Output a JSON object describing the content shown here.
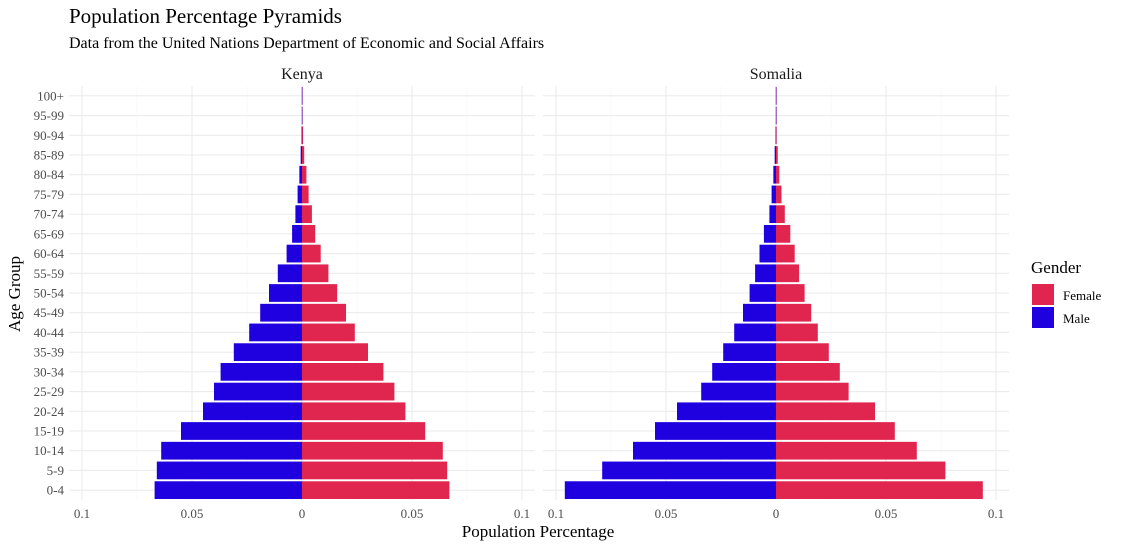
{
  "chart_data": {
    "type": "bar",
    "title": "Population Percentage Pyramids",
    "subtitle": "Data from the United Nations Department of Economic and Social Affairs",
    "xlabel": "Population Percentage",
    "ylabel": "Age Group",
    "xlim": [
      -0.1,
      0.1
    ],
    "x_tick_labels": [
      "0.1",
      "0.05",
      "0",
      "0.05",
      "0.1"
    ],
    "x_tick_values": [
      -0.1,
      -0.05,
      0,
      0.05,
      0.1
    ],
    "grid": true,
    "legend": {
      "title": "Gender",
      "placement": "right",
      "entries": [
        {
          "name": "Female",
          "color": "#E0264F"
        },
        {
          "name": "Male",
          "color": "#1F00DF"
        }
      ]
    },
    "categories": [
      "0-4",
      "5-9",
      "10-14",
      "15-19",
      "20-24",
      "25-29",
      "30-34",
      "35-39",
      "40-44",
      "45-49",
      "50-54",
      "55-59",
      "60-64",
      "65-69",
      "70-74",
      "75-79",
      "80-84",
      "85-89",
      "90-94",
      "95-99",
      "100+"
    ],
    "panels": [
      {
        "name": "Kenya",
        "series": [
          {
            "name": "Female",
            "values": [
              0.067,
              0.066,
              0.064,
              0.056,
              0.047,
              0.042,
              0.037,
              0.03,
              0.024,
              0.02,
              0.016,
              0.012,
              0.0085,
              0.006,
              0.0045,
              0.003,
              0.002,
              0.001,
              0.0005,
              0.0002,
              0.0001
            ]
          },
          {
            "name": "Male",
            "values": [
              -0.067,
              -0.066,
              -0.064,
              -0.055,
              -0.045,
              -0.04,
              -0.037,
              -0.031,
              -0.024,
              -0.019,
              -0.015,
              -0.011,
              -0.007,
              -0.0045,
              -0.003,
              -0.002,
              -0.0012,
              -0.0006,
              -0.0002,
              -0.0001,
              -0.0001
            ]
          }
        ]
      },
      {
        "name": "Somalia",
        "series": [
          {
            "name": "Female",
            "values": [
              0.094,
              0.077,
              0.064,
              0.054,
              0.045,
              0.033,
              0.029,
              0.024,
              0.019,
              0.016,
              0.013,
              0.0105,
              0.0085,
              0.0065,
              0.004,
              0.0025,
              0.0015,
              0.0008,
              0.0003,
              0.0001,
              0.0001
            ]
          },
          {
            "name": "Male",
            "values": [
              -0.096,
              -0.079,
              -0.065,
              -0.055,
              -0.045,
              -0.034,
              -0.029,
              -0.024,
              -0.019,
              -0.015,
              -0.012,
              -0.0095,
              -0.0075,
              -0.0055,
              -0.003,
              -0.002,
              -0.0012,
              -0.0006,
              -0.0002,
              -0.0001,
              -0.0001
            ]
          }
        ]
      }
    ]
  }
}
